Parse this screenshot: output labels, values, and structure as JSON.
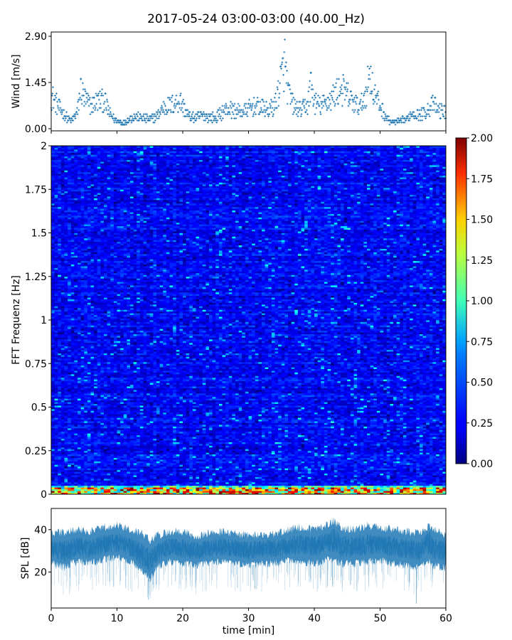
{
  "figure": {
    "title": "2017-05-24 03:00-03:00 (40.00_Hz)"
  },
  "chart_data": [
    {
      "type": "scatter",
      "panel": "wind",
      "ylabel": "Wind [m/s]",
      "xlim": [
        0,
        60
      ],
      "ylim": [
        0,
        2.9
      ],
      "yticks": [
        0.0,
        1.45,
        2.9
      ],
      "ytick_labels": [
        "0.00",
        "1.45",
        "2.90"
      ],
      "marker": "+",
      "color": "#1f77b4",
      "x": [
        0.0,
        1.0,
        2.0,
        3.0,
        4.0,
        4.5,
        5.0,
        6.0,
        7.0,
        8.0,
        9.0,
        10.0,
        11.0,
        12.0,
        13.0,
        14.0,
        15.0,
        16.0,
        17.0,
        18.0,
        19.0,
        19.5,
        20.0,
        21.0,
        22.0,
        23.0,
        24.0,
        25.0,
        26.0,
        27.0,
        28.0,
        29.0,
        30.0,
        31.0,
        32.0,
        33.0,
        34.0,
        35.0,
        35.5,
        36.0,
        37.0,
        38.0,
        39.0,
        39.5,
        40.0,
        41.0,
        42.0,
        43.0,
        44.0,
        45.0,
        46.0,
        47.0,
        48.0,
        48.5,
        49.0,
        50.0,
        51.0,
        52.0,
        53.0,
        54.0,
        55.0,
        56.0,
        57.0,
        58.0,
        59.0,
        60.0
      ],
      "y": [
        1.1,
        0.75,
        0.45,
        0.25,
        0.55,
        1.35,
        1.0,
        0.75,
        0.9,
        0.95,
        0.45,
        0.25,
        0.2,
        0.35,
        0.4,
        0.35,
        0.3,
        0.4,
        0.7,
        0.75,
        0.85,
        0.95,
        0.75,
        0.4,
        0.35,
        0.45,
        0.4,
        0.35,
        0.55,
        0.65,
        0.6,
        0.55,
        0.65,
        0.75,
        0.7,
        0.6,
        0.75,
        1.7,
        2.2,
        1.2,
        0.7,
        0.6,
        0.8,
        1.5,
        0.85,
        0.75,
        0.9,
        1.1,
        1.35,
        1.1,
        0.85,
        0.7,
        1.3,
        1.9,
        1.2,
        0.75,
        0.35,
        0.2,
        0.25,
        0.3,
        0.55,
        0.45,
        0.6,
        0.8,
        0.6,
        0.55
      ]
    },
    {
      "type": "heatmap",
      "panel": "spectrogram",
      "ylabel": "FFT Frequenz [Hz]",
      "xlim": [
        0,
        60
      ],
      "ylim": [
        0,
        2
      ],
      "yticks": [
        0,
        0.25,
        0.5,
        0.75,
        1,
        1.25,
        1.5,
        1.75,
        2
      ],
      "ytick_labels": [
        "0",
        "0.25",
        "0.5",
        "0.75",
        "1",
        "1.25",
        "1.5",
        "1.75",
        "2"
      ],
      "colormap": "jet",
      "clim": [
        0.0,
        2.0
      ],
      "colorbar_ticks": [
        "0.00",
        "0.25",
        "0.50",
        "0.75",
        "1.00",
        "1.25",
        "1.50",
        "1.75",
        "2.00"
      ],
      "typical_value": 0.25,
      "low_frequency_band": {
        "freq_max": 0.05,
        "value_range": [
          1.0,
          2.0
        ]
      }
    },
    {
      "type": "area",
      "panel": "spl",
      "ylabel": "SPL [dB]",
      "xlabel": "time [min]",
      "xlim": [
        0,
        60
      ],
      "ylim": [
        3,
        50
      ],
      "yticks": [
        20,
        40
      ],
      "xticks": [
        0,
        10,
        20,
        30,
        40,
        50,
        60
      ],
      "color": "#1f77b4",
      "x": [
        0,
        2,
        4,
        6,
        8,
        10,
        12,
        14,
        15,
        16,
        18,
        20,
        22,
        24,
        26,
        28,
        30,
        32,
        34,
        36,
        38,
        40,
        42,
        43,
        44,
        46,
        48,
        50,
        52,
        54,
        56,
        57.5,
        58,
        60
      ],
      "upper": [
        38,
        39,
        40,
        39,
        41,
        42,
        40,
        38,
        35,
        37,
        39,
        39,
        37,
        38,
        39,
        38,
        37,
        38,
        38,
        40,
        41,
        40,
        42,
        44,
        41,
        40,
        42,
        41,
        40,
        39,
        38,
        42,
        40,
        38
      ],
      "lower": [
        24,
        22,
        25,
        24,
        26,
        27,
        25,
        20,
        16,
        22,
        25,
        24,
        23,
        24,
        25,
        24,
        23,
        24,
        24,
        25,
        25,
        24,
        26,
        25,
        24,
        24,
        25,
        25,
        24,
        23,
        22,
        25,
        23,
        22
      ],
      "center": [
        31,
        30,
        32,
        31,
        33,
        34,
        32,
        28,
        25,
        29,
        32,
        31,
        30,
        31,
        32,
        31,
        30,
        31,
        31,
        32,
        33,
        32,
        34,
        35,
        32,
        32,
        33,
        33,
        32,
        31,
        30,
        34,
        31,
        30
      ],
      "min_spikes": [
        {
          "x": 14.8,
          "y": 7
        },
        {
          "x": 9.5,
          "y": 13
        },
        {
          "x": 16,
          "y": 14
        },
        {
          "x": 55.5,
          "y": 5
        },
        {
          "x": 31,
          "y": 12
        },
        {
          "x": 45.5,
          "y": 14
        }
      ]
    }
  ]
}
